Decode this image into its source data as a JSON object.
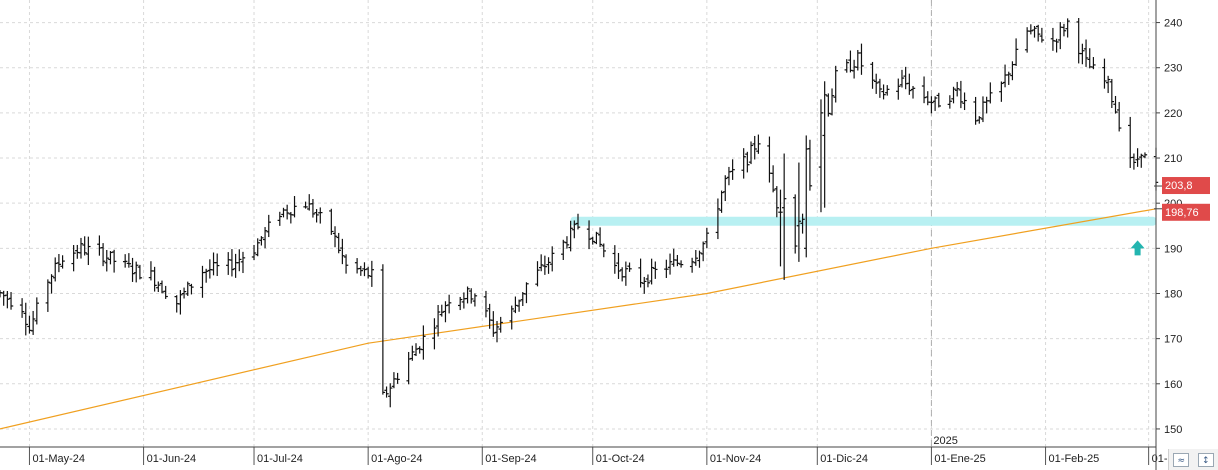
{
  "chart_data": {
    "type": "ohlc",
    "y_axis": {
      "ylim": [
        146,
        245
      ],
      "ticks": [
        150,
        160,
        170,
        180,
        190,
        200,
        210,
        220,
        230,
        240
      ],
      "position": "right"
    },
    "x_axis": {
      "date_range": [
        "2024-04-23",
        "2025-03-03"
      ],
      "ticks": [
        {
          "date": "2024-05-01",
          "label": "01-May-24"
        },
        {
          "date": "2024-06-01",
          "label": "01-Jun-24"
        },
        {
          "date": "2024-07-01",
          "label": "01-Jul-24"
        },
        {
          "date": "2024-08-01",
          "label": "01-Ago-24"
        },
        {
          "date": "2024-09-01",
          "label": "01-Sep-24"
        },
        {
          "date": "2024-10-01",
          "label": "01-Oct-24"
        },
        {
          "date": "2024-11-01",
          "label": "01-Nov-24"
        },
        {
          "date": "2024-12-01",
          "label": "01-Dic-24"
        },
        {
          "date": "2025-01-01",
          "label": "01-Ene-25"
        },
        {
          "date": "2025-02-01",
          "label": "01-Feb-25"
        },
        {
          "date": "2025-03-01",
          "label": "01-"
        }
      ],
      "year_marker": {
        "date": "2025-01-01",
        "label": "2025"
      }
    },
    "grid": true,
    "price_keypoints": [
      [
        "2024-04-23",
        180
      ],
      [
        "2024-04-29",
        177
      ],
      [
        "2024-05-01",
        172
      ],
      [
        "2024-05-06",
        183
      ],
      [
        "2024-05-10",
        188
      ],
      [
        "2024-05-15",
        190
      ],
      [
        "2024-05-20",
        189
      ],
      [
        "2024-05-27",
        186
      ],
      [
        "2024-06-03",
        184
      ],
      [
        "2024-06-10",
        178
      ],
      [
        "2024-06-17",
        185
      ],
      [
        "2024-06-24",
        186
      ],
      [
        "2024-07-01",
        190
      ],
      [
        "2024-07-08",
        198
      ],
      [
        "2024-07-15",
        200
      ],
      [
        "2024-07-22",
        194
      ],
      [
        "2024-07-26",
        186
      ],
      [
        "2024-08-02",
        184
      ],
      [
        "2024-08-05",
        157
      ],
      [
        "2024-08-09",
        162
      ],
      [
        "2024-08-16",
        170
      ],
      [
        "2024-08-23",
        179
      ],
      [
        "2024-08-30",
        180
      ],
      [
        "2024-09-04",
        172
      ],
      [
        "2024-09-09",
        176
      ],
      [
        "2024-09-13",
        182
      ],
      [
        "2024-09-20",
        188
      ],
      [
        "2024-09-27",
        195
      ],
      [
        "2024-10-01",
        193
      ],
      [
        "2024-10-07",
        186
      ],
      [
        "2024-10-14",
        183
      ],
      [
        "2024-10-21",
        186
      ],
      [
        "2024-10-28",
        188
      ],
      [
        "2024-11-01",
        192
      ],
      [
        "2024-11-06",
        205
      ],
      [
        "2024-11-12",
        210
      ],
      [
        "2024-11-15",
        214
      ],
      [
        "2024-11-20",
        200
      ],
      [
        "2024-11-25",
        192
      ],
      [
        "2024-11-27",
        197
      ],
      [
        "2024-12-02",
        214
      ],
      [
        "2024-12-06",
        228
      ],
      [
        "2024-12-12",
        232
      ],
      [
        "2024-12-18",
        224
      ],
      [
        "2024-12-24",
        227
      ],
      [
        "2025-01-02",
        222
      ],
      [
        "2025-01-08",
        225
      ],
      [
        "2025-01-13",
        219
      ],
      [
        "2025-01-20",
        226
      ],
      [
        "2025-01-27",
        238
      ],
      [
        "2025-02-03",
        236
      ],
      [
        "2025-02-07",
        240
      ],
      [
        "2025-02-12",
        231
      ],
      [
        "2025-02-18",
        226
      ],
      [
        "2025-02-21",
        218
      ],
      [
        "2025-02-25",
        208
      ],
      [
        "2025-02-27",
        212
      ],
      [
        "2025-03-03",
        203.8
      ]
    ],
    "big_bars": [
      {
        "date": "2024-11-21",
        "open": 198,
        "high": 203,
        "low": 186,
        "close": 198
      },
      {
        "date": "2024-11-22",
        "open": 199,
        "high": 211,
        "low": 183,
        "close": 201
      },
      {
        "date": "2024-11-26",
        "open": 195,
        "high": 209,
        "low": 187,
        "close": 196
      },
      {
        "date": "2024-11-28",
        "open": 190,
        "high": 215,
        "low": 188,
        "close": 212
      },
      {
        "date": "2024-12-02",
        "open": 208,
        "high": 223,
        "low": 198,
        "close": 220
      },
      {
        "date": "2024-12-03",
        "open": 215,
        "high": 227,
        "low": 199,
        "close": 224
      }
    ],
    "moving_average": {
      "color": "#f0a020",
      "points": [
        [
          "2024-04-23",
          150
        ],
        [
          "2024-08-01",
          169
        ],
        [
          "2024-11-01",
          180
        ],
        [
          "2025-01-01",
          190
        ],
        [
          "2025-03-03",
          198.76
        ]
      ]
    },
    "support_zone": {
      "color": "#b8f0f2",
      "from": "2024-09-25",
      "to": "2025-03-03",
      "low": 195,
      "high": 197
    },
    "price_labels": [
      {
        "value": 203.8,
        "text": "203,8",
        "color": "#e04a4a"
      },
      {
        "value": 198.76,
        "text": "198,76",
        "color": "#e04a4a"
      }
    ],
    "arrow": {
      "date": "2025-02-26",
      "value": 190,
      "direction": "up",
      "color": "#23b5b0"
    }
  },
  "ui": {
    "corner_buttons": [
      "≈",
      "↕"
    ]
  }
}
